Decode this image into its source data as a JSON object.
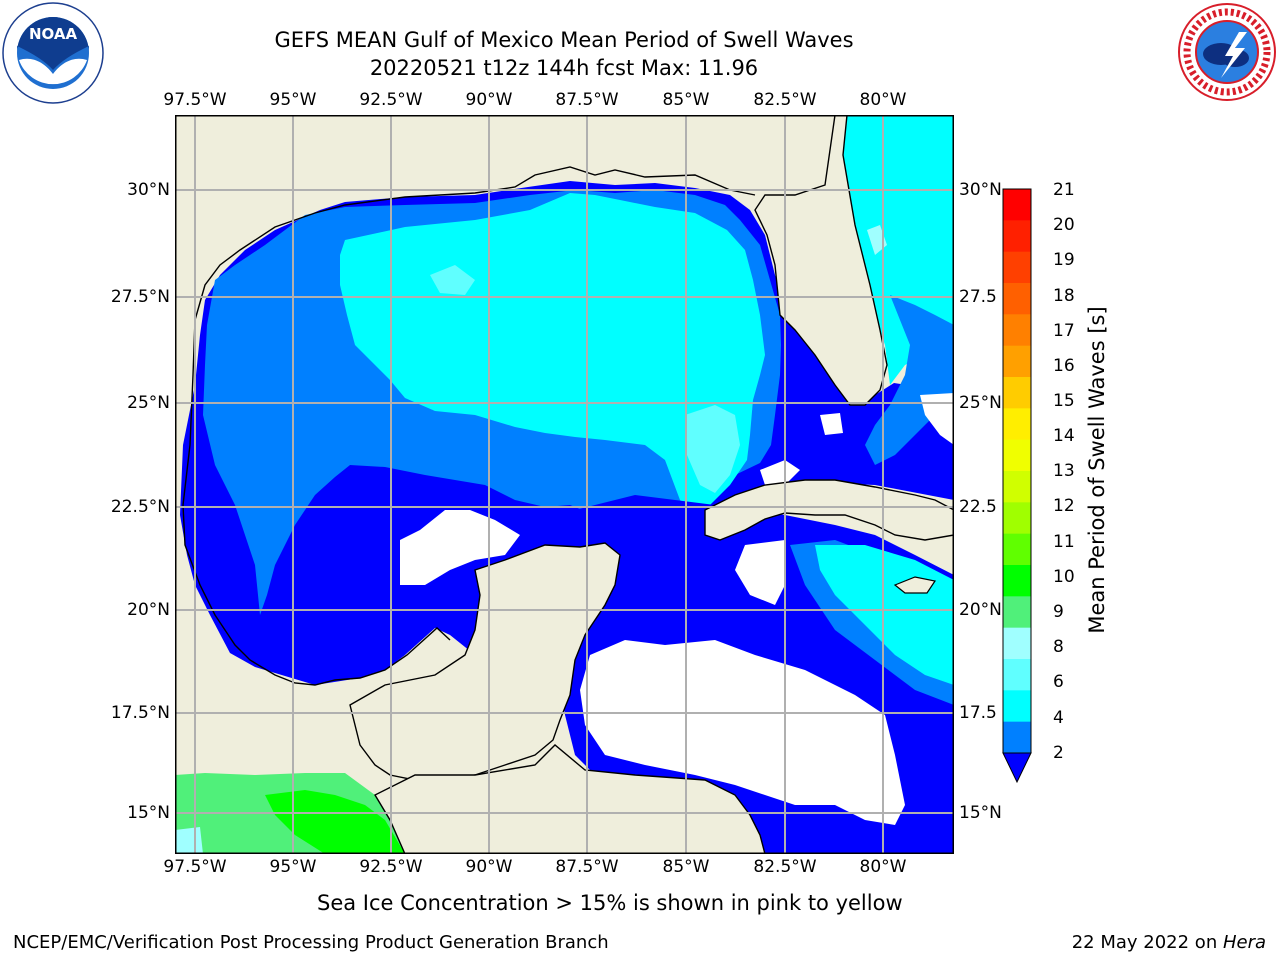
{
  "header": {
    "title_line1": "GEFS MEAN Gulf of Mexico Mean Period of Swell Waves",
    "title_line2": "20220521 t12z 144h fcst   Max: 11.96"
  },
  "logos": {
    "left": {
      "name": "NOAA",
      "ring_text": "NATIONAL OCEANIC AND ATMOSPHERIC ADMINISTRATION",
      "ring_text_bottom": "U.S. DEPARTMENT OF COMMERCE"
    },
    "right": {
      "name": "NATIONAL WEATHER SERVICE"
    }
  },
  "map": {
    "lon_ticks": [
      "97.5°W",
      "95°W",
      "92.5°W",
      "90°W",
      "87.5°W",
      "85°W",
      "82.5°W",
      "80°W"
    ],
    "lat_ticks_left": [
      "30°N",
      "27.5°N",
      "25°N",
      "22.5°N",
      "20°N",
      "17.5°N",
      "15°N"
    ],
    "lat_ticks_right": [
      "30°N",
      "27.5",
      "25°N",
      "22.5",
      "20°N",
      "17.5",
      "15°N"
    ],
    "colors": {
      "land": "#efeedc",
      "ocean_deep": "#0000ff",
      "ocean_2_4": "#0080ff",
      "ocean_4_6": "#00ffff",
      "ocean_6_8": "#40ffff",
      "ocean_8_9": "#a0ffff",
      "green_9_10": "#50f07a",
      "green_10_11": "#00ff00",
      "missing": "#ffffff",
      "grid": "#b0b0b0"
    }
  },
  "colorbar": {
    "label": "Mean Period of Swell Waves [s]",
    "ticks": [
      "21",
      "20",
      "19",
      "18",
      "17",
      "16",
      "15",
      "14",
      "13",
      "12",
      "11",
      "10",
      "9",
      "8",
      "6",
      "4",
      "2"
    ],
    "segment_colors": [
      "#ff0000",
      "#ff2000",
      "#ff4000",
      "#ff6000",
      "#ff8000",
      "#ffa000",
      "#ffcc00",
      "#ffee00",
      "#f0ff00",
      "#d0ff00",
      "#a0ff00",
      "#60ff00",
      "#00ff00",
      "#50f07a",
      "#a0ffff",
      "#60ffff",
      "#00ffff",
      "#0080ff"
    ],
    "extend_color": "#0000ff"
  },
  "note": "Sea Ice Concentration > 15% is shown in pink to yellow",
  "footer": {
    "left": "NCEP/EMC/Verification Post Processing Product Generation Branch",
    "right_prefix": "22 May 2022 on ",
    "right_host": "Hera"
  }
}
